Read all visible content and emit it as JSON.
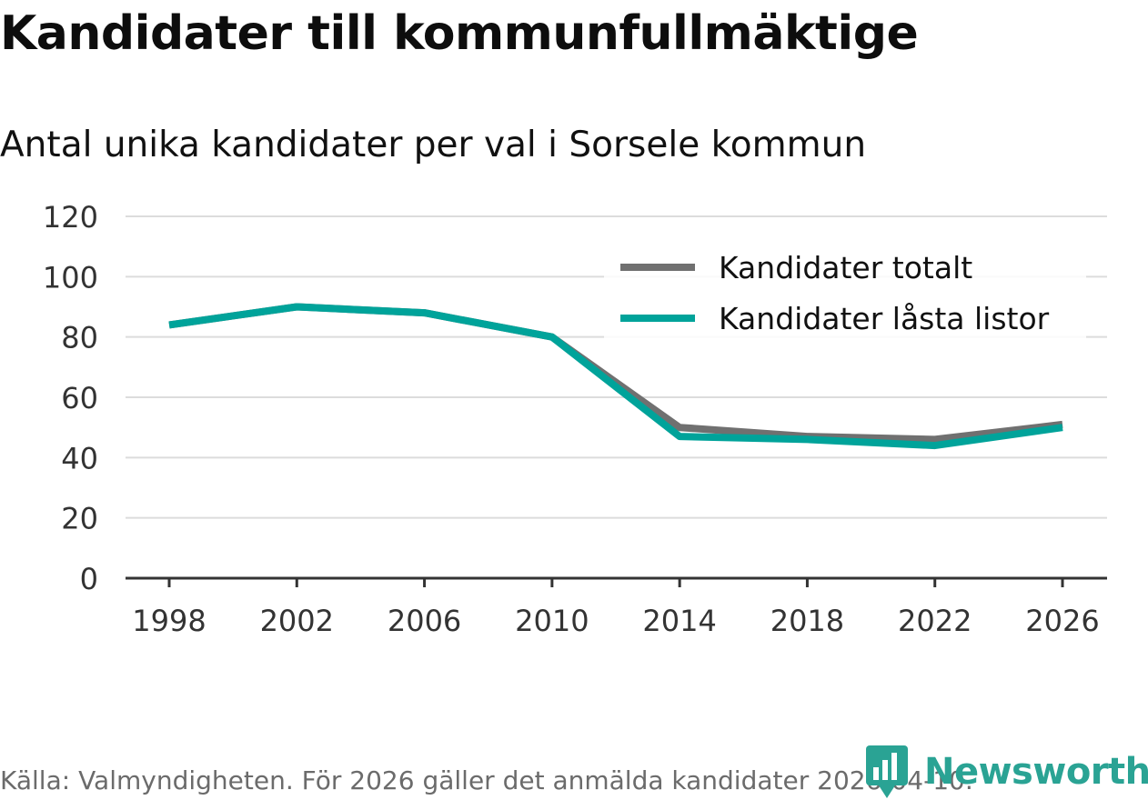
{
  "header": {
    "title": "Kandidater till kommunfullmäktige",
    "subtitle": "Antal unika kandidater per val i Sorsele kommun"
  },
  "footer": {
    "source": "Källa: Valmyndigheten. För 2026 gäller det anmälda kandidater 2026-04-10.",
    "brand": "Newsworthy"
  },
  "colors": {
    "series_total": "#707070",
    "series_locked": "#00a39a",
    "grid": "#dcdcdc",
    "axis": "#333333",
    "brand": "#2aa394"
  },
  "chart_data": {
    "type": "line",
    "title": "Kandidater till kommunfullmäktige",
    "subtitle": "Antal unika kandidater per val i Sorsele kommun",
    "xlabel": "",
    "ylabel": "",
    "x": [
      "1998",
      "2002",
      "2006",
      "2010",
      "2014",
      "2018",
      "2022",
      "2026"
    ],
    "ylim": [
      0,
      120
    ],
    "yticks": [
      "0",
      "20",
      "40",
      "60",
      "80",
      "100",
      "120"
    ],
    "grid": true,
    "legend_position": "top-right",
    "series": [
      {
        "name": "Kandidater totalt",
        "color": "#707070",
        "values": [
          84,
          90,
          88,
          80,
          50,
          47,
          46,
          51
        ]
      },
      {
        "name": "Kandidater låsta listor",
        "color": "#00a39a",
        "values": [
          84,
          90,
          88,
          80,
          47,
          46,
          44,
          50
        ]
      }
    ]
  }
}
